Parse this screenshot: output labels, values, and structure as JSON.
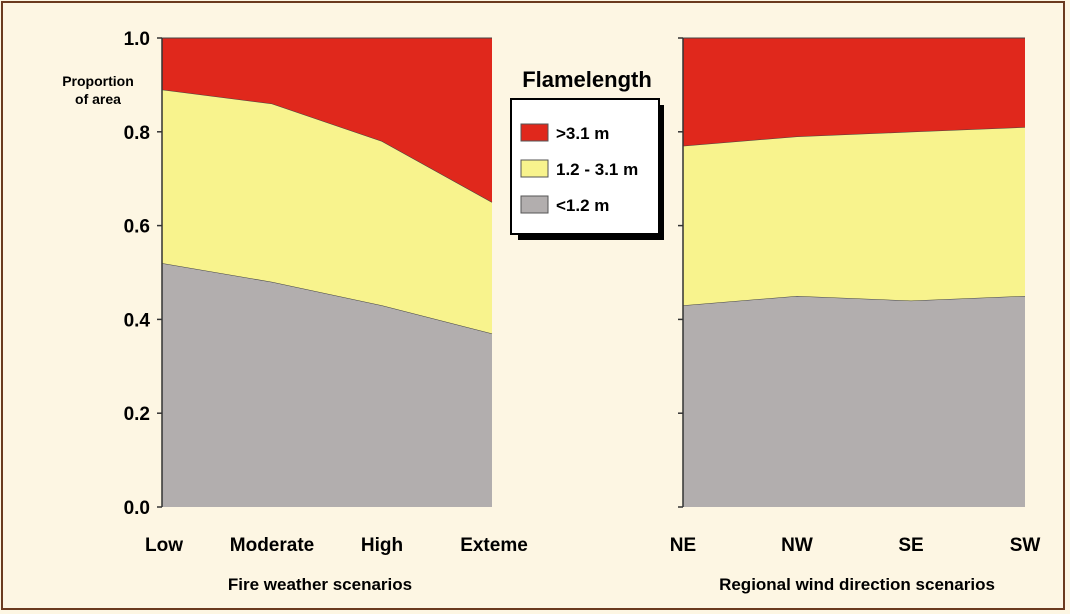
{
  "y_axis_label_line1": "Proportion",
  "y_axis_label_line2": "of area",
  "legend": {
    "title": "Flamelength",
    "items": [
      {
        "label": ">3.1 m",
        "color": "#e0281c"
      },
      {
        "label": "1.2 - 3.1 m",
        "color": "#f8f38d"
      },
      {
        "label": "<1.2 m",
        "color": "#b2aeae"
      }
    ]
  },
  "chart_data": [
    {
      "type": "area",
      "stacked": true,
      "xlabel": "Fire weather scenarios",
      "ylabel": "Proportion of area",
      "ylim": [
        0,
        1
      ],
      "yticks": [
        "0.0",
        "0.2",
        "0.4",
        "0.6",
        "0.8",
        "1.0"
      ],
      "categories": [
        "Low",
        "Moderate",
        "High",
        "Exteme"
      ],
      "series": [
        {
          "name": "<1.2 m",
          "color": "#b2aeae",
          "values": [
            0.52,
            0.48,
            0.43,
            0.37
          ]
        },
        {
          "name": "1.2 - 3.1 m",
          "color": "#f8f38d",
          "values": [
            0.37,
            0.38,
            0.35,
            0.28
          ]
        },
        {
          "name": ">3.1 m",
          "color": "#e0281c",
          "values": [
            0.11,
            0.14,
            0.22,
            0.35
          ]
        }
      ]
    },
    {
      "type": "area",
      "stacked": true,
      "xlabel": "Regional wind direction scenarios",
      "ylabel": "",
      "ylim": [
        0,
        1
      ],
      "categories": [
        "NE",
        "NW",
        "SE",
        "SW"
      ],
      "series": [
        {
          "name": "<1.2 m",
          "color": "#b2aeae",
          "values": [
            0.43,
            0.45,
            0.44,
            0.45
          ]
        },
        {
          "name": "1.2 - 3.1 m",
          "color": "#f8f38d",
          "values": [
            0.34,
            0.34,
            0.36,
            0.36
          ]
        },
        {
          "name": ">3.1 m",
          "color": "#e0281c",
          "values": [
            0.23,
            0.21,
            0.2,
            0.19
          ]
        }
      ]
    }
  ]
}
